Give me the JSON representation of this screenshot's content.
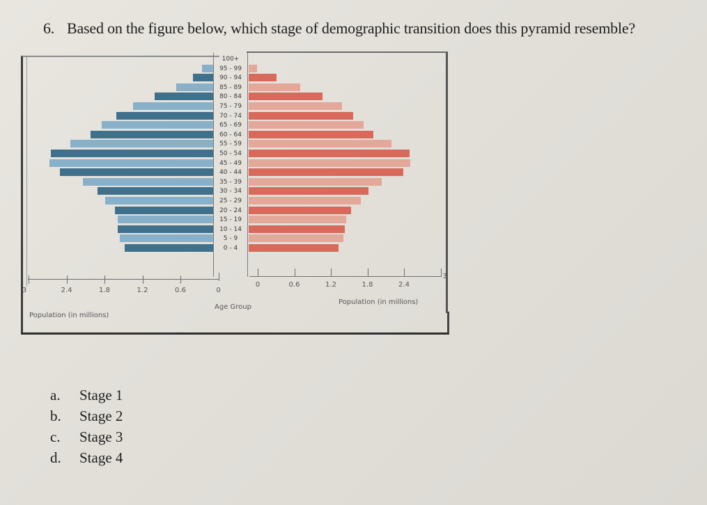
{
  "question": {
    "number": "6.",
    "text": "Based on the figure below, which stage of demographic transition does this pyramid resemble?"
  },
  "choices": [
    {
      "letter": "a.",
      "label": "Stage 1"
    },
    {
      "letter": "b.",
      "label": "Stage 2"
    },
    {
      "letter": "c.",
      "label": "Stage 3"
    },
    {
      "letter": "d.",
      "label": "Stage 4"
    }
  ],
  "chart_data": {
    "type": "bar",
    "subtype": "population-pyramid",
    "title": "",
    "center_label": "Age Group",
    "left_xlabel": "Population (in millions)",
    "right_xlabel": "Population (in millions)",
    "left_ticks": [
      "3",
      "2.4",
      "1.8",
      "1.2",
      "0.6",
      "0"
    ],
    "right_ticks": [
      "0",
      "0.6",
      "1.2",
      "1.8",
      "2.4",
      "3"
    ],
    "xlim": [
      0,
      3
    ],
    "categories": [
      "100+",
      "95 - 99",
      "90 - 94",
      "85 - 89",
      "80 - 84",
      "75 - 79",
      "70 - 74",
      "65 - 69",
      "60 - 64",
      "55 - 59",
      "50 - 54",
      "45 - 49",
      "40 - 44",
      "35 - 39",
      "30 - 34",
      "25 - 29",
      "20 - 24",
      "15 - 19",
      "10 - 14",
      "5 - 9",
      "0 - 4"
    ],
    "series": [
      {
        "name": "Left (blue)",
        "side": "left",
        "color": "#3f718c",
        "alt_color": "#88b1c9",
        "values": [
          0.0,
          0.18,
          0.32,
          0.58,
          0.92,
          1.26,
          1.53,
          1.76,
          1.93,
          2.25,
          2.56,
          2.58,
          2.42,
          2.05,
          1.82,
          1.7,
          1.55,
          1.51,
          1.51,
          1.47,
          1.4
        ]
      },
      {
        "name": "Right (red)",
        "side": "right",
        "color": "#d9695a",
        "alt_color": "#e3a89a",
        "values": [
          0.0,
          0.14,
          0.45,
          0.84,
          1.21,
          1.52,
          1.7,
          1.87,
          2.03,
          2.33,
          2.63,
          2.64,
          2.52,
          2.17,
          1.95,
          1.83,
          1.67,
          1.59,
          1.57,
          1.54,
          1.47
        ]
      }
    ],
    "grid": false,
    "legend": "none"
  }
}
